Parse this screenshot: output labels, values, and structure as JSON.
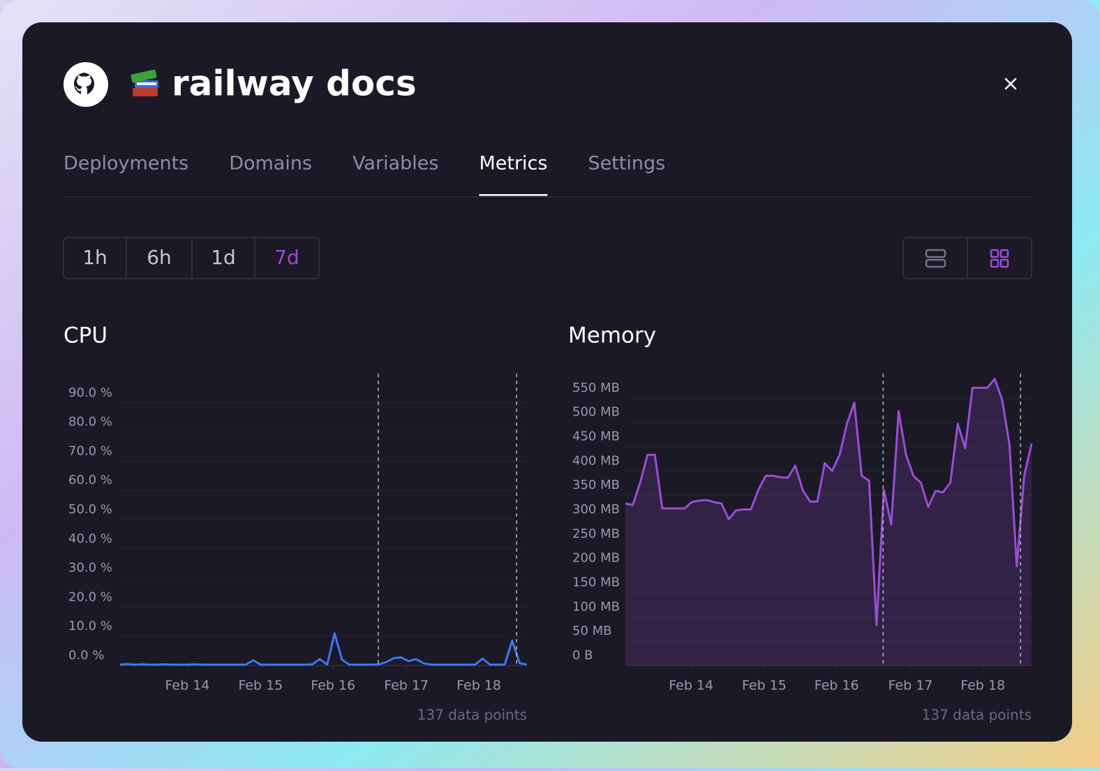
{
  "header": {
    "title": "railway docs"
  },
  "tabs": [
    "Deployments",
    "Domains",
    "Variables",
    "Metrics",
    "Settings"
  ],
  "active_tab": 3,
  "ranges": [
    "1h",
    "6h",
    "1d",
    "7d"
  ],
  "active_range": 3,
  "chart_data": [
    {
      "type": "line",
      "title": "CPU",
      "color": "#3a78f0",
      "area": false,
      "values": [
        0.3,
        0.5,
        0.3,
        0.4,
        0.3,
        0.3,
        0.4,
        0.3,
        0.3,
        0.3,
        0.4,
        0.3,
        0.3,
        0.3,
        0.3,
        0.3,
        0.3,
        0.3,
        1.8,
        0.3,
        0.3,
        0.3,
        0.3,
        0.3,
        0.3,
        0.3,
        0.4,
        2.2,
        0.3,
        11.0,
        2.0,
        0.3,
        0.3,
        0.3,
        0.3,
        0.4,
        1.2,
        2.5,
        2.8,
        1.5,
        2.2,
        0.8,
        0.3,
        0.3,
        0.3,
        0.3,
        0.3,
        0.3,
        0.3,
        2.4,
        0.3,
        0.3,
        0.3,
        8.6,
        0.8,
        0.3
      ],
      "xlim": [
        0,
        55
      ],
      "xticks": [
        {
          "value": 9.1,
          "label": "Feb 14"
        },
        {
          "value": 19.0,
          "label": "Feb 15"
        },
        {
          "value": 28.8,
          "label": "Feb 16"
        },
        {
          "value": 38.7,
          "label": "Feb 17"
        },
        {
          "value": 48.5,
          "label": "Feb 18"
        }
      ],
      "ylim": [
        0,
        100
      ],
      "yticks": [
        {
          "value": 0,
          "label": "0.0 %"
        },
        {
          "value": 10,
          "label": "10.0 %"
        },
        {
          "value": 20,
          "label": "20.0 %"
        },
        {
          "value": 30,
          "label": "30.0 %"
        },
        {
          "value": 40,
          "label": "40.0 %"
        },
        {
          "value": 50,
          "label": "50.0 %"
        },
        {
          "value": 60,
          "label": "60.0 %"
        },
        {
          "value": 70,
          "label": "70.0 %"
        },
        {
          "value": 80,
          "label": "80.0 %"
        },
        {
          "value": 90,
          "label": "90.0 %"
        }
      ],
      "markers": [
        34.9,
        53.6
      ],
      "footnote": "137 data points"
    },
    {
      "type": "line",
      "title": "Memory",
      "color": "#9b4dd6",
      "area": true,
      "values": [
        333,
        330,
        376,
        433,
        433,
        323,
        323,
        323,
        323,
        336,
        339,
        340,
        336,
        333,
        301,
        319,
        321,
        321,
        361,
        390,
        390,
        387,
        386,
        411,
        361,
        337,
        337,
        416,
        400,
        433,
        497,
        540,
        390,
        380,
        83,
        361,
        290,
        523,
        433,
        390,
        376,
        326,
        359,
        356,
        376,
        497,
        447,
        571,
        571,
        571,
        589,
        547,
        454,
        204,
        390,
        456
      ],
      "xlim": [
        0,
        55
      ],
      "xticks": [
        {
          "value": 8.9,
          "label": "Feb 14"
        },
        {
          "value": 18.8,
          "label": "Feb 15"
        },
        {
          "value": 28.6,
          "label": "Feb 16"
        },
        {
          "value": 38.6,
          "label": "Feb 17"
        },
        {
          "value": 48.4,
          "label": "Feb 18"
        }
      ],
      "ylim": [
        0,
        600
      ],
      "yticks": [
        {
          "value": 0,
          "label": "0 B"
        },
        {
          "value": 50,
          "label": "50 MB"
        },
        {
          "value": 100,
          "label": "100 MB"
        },
        {
          "value": 150,
          "label": "150 MB"
        },
        {
          "value": 200,
          "label": "200 MB"
        },
        {
          "value": 250,
          "label": "250 MB"
        },
        {
          "value": 300,
          "label": "300 MB"
        },
        {
          "value": 350,
          "label": "350 MB"
        },
        {
          "value": 400,
          "label": "400 MB"
        },
        {
          "value": 450,
          "label": "450 MB"
        },
        {
          "value": 500,
          "label": "500 MB"
        },
        {
          "value": 550,
          "label": "550 MB"
        }
      ],
      "markers": [
        34.9,
        53.5
      ],
      "footnote": "137 data points"
    }
  ]
}
